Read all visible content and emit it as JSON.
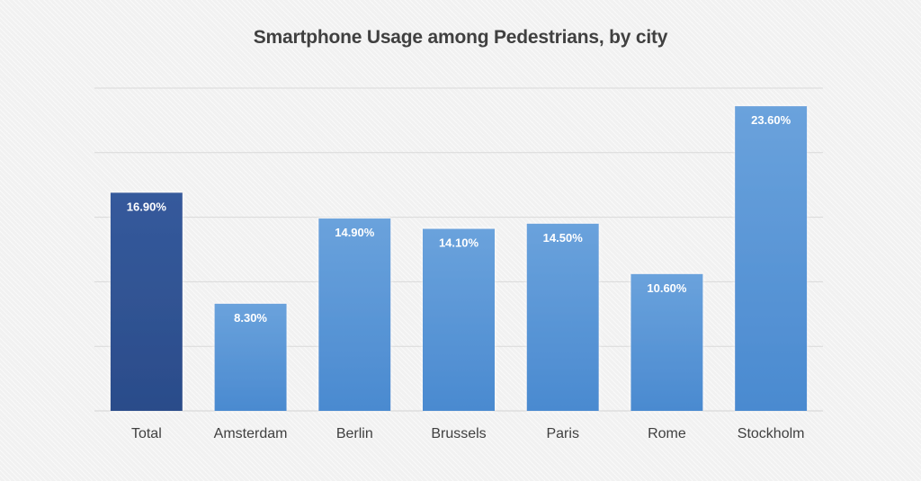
{
  "chart_data": {
    "type": "bar",
    "title": "Smartphone Usage among Pedestrians, by city",
    "categories": [
      "Total",
      "Amsterdam",
      "Berlin",
      "Brussels",
      "Paris",
      "Rome",
      "Stockholm"
    ],
    "values": [
      16.9,
      8.3,
      14.9,
      14.1,
      14.5,
      10.6,
      23.6
    ],
    "labels": [
      "16.90%",
      "8.30%",
      "14.90%",
      "14.10%",
      "14.50%",
      "10.60%",
      "23.60%"
    ],
    "ylim": [
      0,
      25
    ],
    "grid": true,
    "xlabel": "",
    "ylabel": "",
    "colors": {
      "highlight_top": "#355a9c",
      "highlight_bottom": "#2b4c8a",
      "bar_top": "#6aa2dc",
      "bar_bottom": "#4a8ad0",
      "grid": "#d9d9d9"
    }
  }
}
